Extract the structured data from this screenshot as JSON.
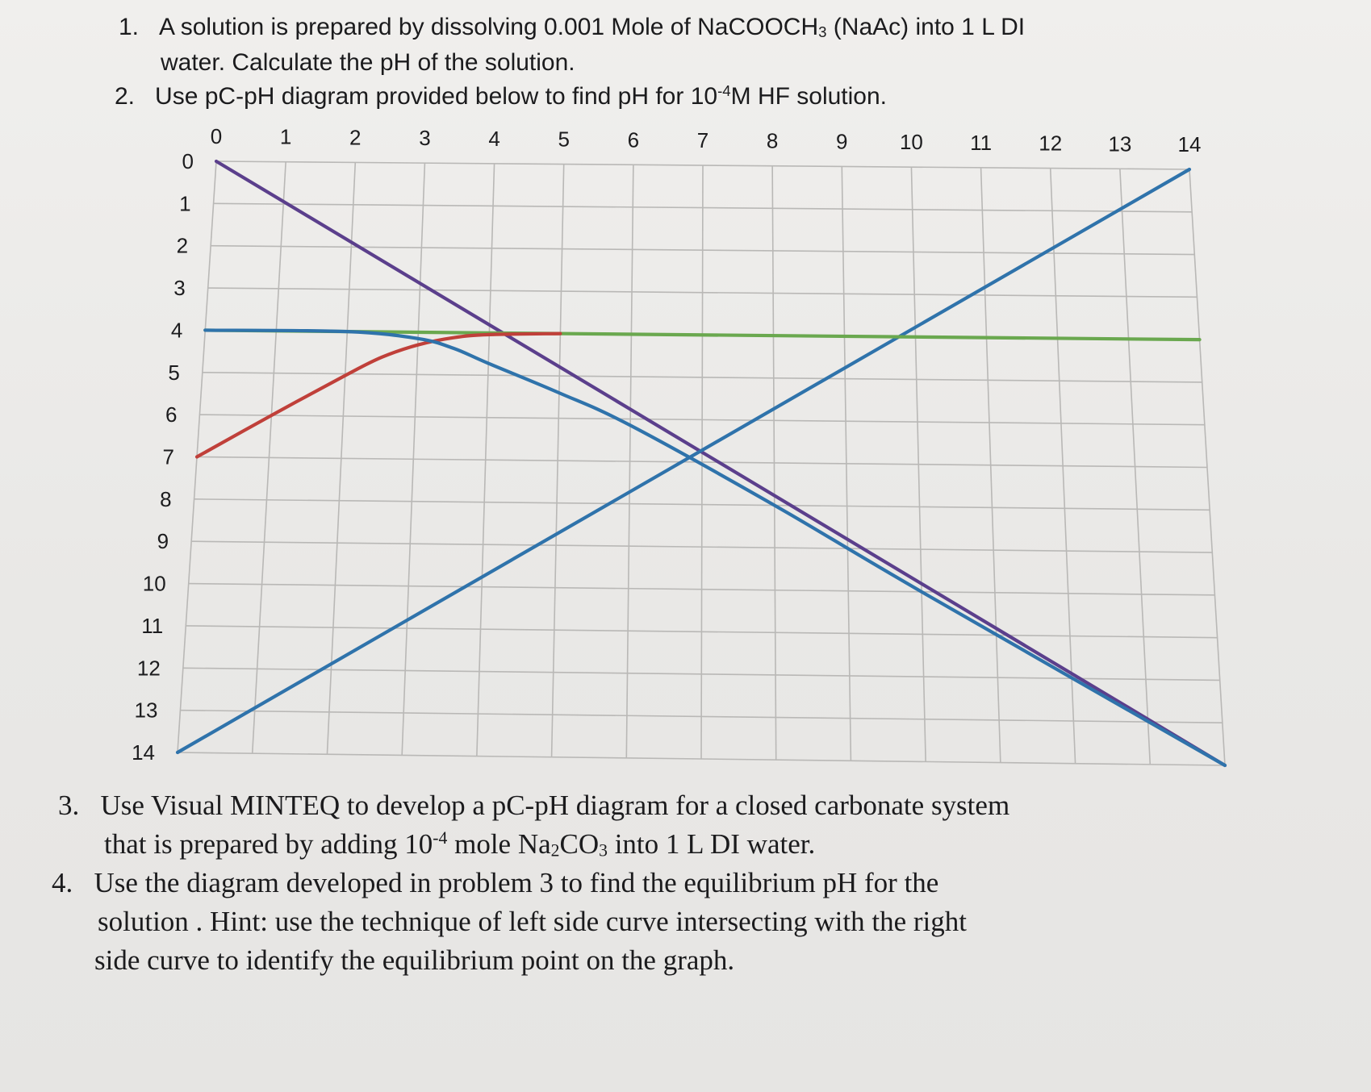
{
  "questions": {
    "q1": {
      "number": "1.",
      "line1_a": "A solution is prepared by dissolving 0.001 Mole of NaCOOCH",
      "line1_sub": "3",
      "line1_b": " (NaAc) into 1 L DI",
      "line2": "water.  Calculate the pH of the solution."
    },
    "q2": {
      "number": "2.",
      "text_a": "Use pC-pH diagram provided below to find pH for 10",
      "text_sup": "-4",
      "text_b": "M HF solution."
    },
    "q3": {
      "number": "3.",
      "line1": "Use Visual MINTEQ to develop a pC-pH diagram for a closed carbonate system",
      "line2_a": "that is prepared by adding 10",
      "line2_sup": "-4",
      "line2_b": " mole Na",
      "line2_sub1": "2",
      "line2_c": "CO",
      "line2_sub2": "3",
      "line2_d": " into 1 L DI water."
    },
    "q4": {
      "number": "4.",
      "line1": "Use the diagram developed in problem 3 to find the equilibrium pH for the",
      "line2": "solution .  Hint: use the technique of left side curve intersecting with the right",
      "line3": "side curve to identify the equilibrium point on the graph."
    }
  },
  "chart_data": {
    "type": "line",
    "x_ticks": [
      "0",
      "1",
      "2",
      "3",
      "4",
      "5",
      "6",
      "7",
      "8",
      "9",
      "10",
      "11",
      "12",
      "13",
      "14"
    ],
    "y_ticks": [
      "0",
      "1",
      "2",
      "3",
      "4",
      "5",
      "6",
      "7",
      "8",
      "9",
      "10",
      "11",
      "12",
      "13",
      "14"
    ],
    "xlim": [
      0,
      14
    ],
    "ylim": [
      0,
      14
    ],
    "y_inverted": true,
    "x_axis_position": "top",
    "grid": true,
    "legend": "none",
    "series": [
      {
        "color": "#5b3f8c",
        "x": [
          0,
          14
        ],
        "y": [
          0,
          14
        ]
      },
      {
        "color": "#2f73ab",
        "x": [
          0,
          14
        ],
        "y": [
          14,
          0
        ]
      },
      {
        "color": "#6aa84f",
        "x": [
          0,
          14
        ],
        "y": [
          4,
          4
        ]
      },
      {
        "color": "#c0403a",
        "x": [
          0,
          1,
          2,
          2.5,
          3,
          3.5,
          4,
          5
        ],
        "y": [
          7,
          6,
          5.04,
          4.6,
          4.3,
          4.12,
          4.04,
          4.0
        ]
      },
      {
        "color": "#2f73ab",
        "x": [
          0,
          2,
          3,
          3.5,
          4,
          5,
          6,
          8,
          10,
          14
        ],
        "y": [
          4,
          4.0,
          4.15,
          4.37,
          4.72,
          5.4,
          6.15,
          8.0,
          10.0,
          14.0
        ]
      }
    ]
  }
}
